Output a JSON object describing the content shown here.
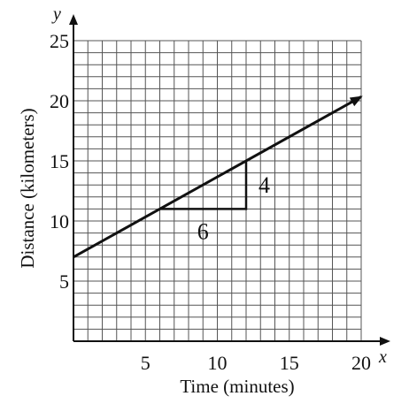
{
  "chart_data": {
    "type": "line",
    "title": "",
    "xlabel": "Time (minutes)",
    "ylabel": "Distance (kilometers)",
    "x_var": "x",
    "y_var": "y",
    "xlim": [
      0,
      20
    ],
    "ylim": [
      0,
      25
    ],
    "grid": true,
    "x_minor_step": 1,
    "y_minor_step": 1,
    "x_ticks": [
      {
        "value": 5,
        "label": "5"
      },
      {
        "value": 10,
        "label": "10"
      },
      {
        "value": 15,
        "label": "15"
      },
      {
        "value": 20,
        "label": "20"
      }
    ],
    "y_ticks": [
      {
        "value": 5,
        "label": "5"
      },
      {
        "value": 10,
        "label": "10"
      },
      {
        "value": 15,
        "label": "15"
      },
      {
        "value": 20,
        "label": "20"
      },
      {
        "value": 25,
        "label": "25"
      }
    ],
    "series": [
      {
        "x": [
          0,
          20
        ],
        "y": [
          7,
          20.3333
        ],
        "arrow_end": true,
        "color": "#111111"
      }
    ],
    "slope_triangle": {
      "start": [
        6,
        11
      ],
      "corner": [
        12,
        11
      ],
      "end": [
        12,
        15
      ],
      "run": 6,
      "rise": 4,
      "run_label": "6",
      "rise_label": "4"
    }
  }
}
